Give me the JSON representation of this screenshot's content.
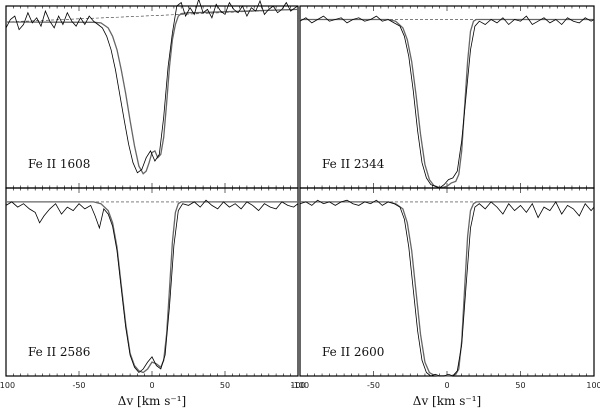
{
  "chart_data": {
    "type": "line",
    "xlabel": "Δv [km s⁻¹]",
    "xlim": [
      -100,
      100
    ],
    "ylim": [
      0,
      1.08
    ],
    "xticks": [
      -100,
      -50,
      0,
      50,
      100
    ],
    "grid": false,
    "panels": [
      {
        "label": "Fe II 1608",
        "row": 0,
        "col": 0,
        "continuum": {
          "y_start": 0.985,
          "y_end": 1.06
        },
        "model": {
          "x": [
            -100,
            -40,
            -35,
            -30,
            -27,
            -24,
            -21,
            -18,
            -15,
            -12,
            -9,
            -6,
            -4,
            -2,
            0,
            2,
            4,
            6,
            8,
            10,
            12,
            14,
            16,
            18,
            20,
            25,
            30,
            100
          ],
          "y": [
            0.985,
            0.983,
            0.98,
            0.95,
            0.9,
            0.82,
            0.7,
            0.56,
            0.4,
            0.25,
            0.13,
            0.085,
            0.1,
            0.15,
            0.21,
            0.22,
            0.18,
            0.2,
            0.3,
            0.5,
            0.72,
            0.88,
            0.97,
            1.02,
            1.035,
            1.04,
            1.04,
            1.06
          ]
        },
        "observed": {
          "x": [
            -100,
            -97,
            -94,
            -91,
            -88,
            -85,
            -82,
            -79,
            -76,
            -73,
            -70,
            -67,
            -64,
            -61,
            -58,
            -55,
            -52,
            -49,
            -46,
            -43,
            -40,
            -37,
            -34,
            -31,
            -28,
            -25,
            -22,
            -19,
            -16,
            -13,
            -10,
            -7,
            -4,
            -1,
            2,
            5,
            8,
            11,
            14,
            17,
            20,
            23,
            26,
            29,
            32,
            35,
            38,
            41,
            44,
            47,
            50,
            53,
            56,
            59,
            62,
            65,
            68,
            71,
            74,
            77,
            80,
            83,
            86,
            89,
            92,
            95,
            98,
            100
          ],
          "y": [
            0.95,
            1.0,
            1.02,
            0.94,
            0.97,
            1.04,
            0.98,
            1.01,
            0.96,
            1.05,
            0.99,
            0.95,
            1.02,
            0.97,
            1.04,
            0.99,
            0.96,
            1.01,
            0.97,
            1.02,
            0.99,
            0.97,
            0.95,
            0.9,
            0.82,
            0.7,
            0.55,
            0.4,
            0.26,
            0.15,
            0.09,
            0.11,
            0.18,
            0.22,
            0.16,
            0.2,
            0.42,
            0.72,
            0.92,
            1.08,
            1.1,
            1.02,
            1.07,
            1.03,
            1.12,
            1.04,
            1.06,
            1.01,
            1.09,
            1.05,
            1.03,
            1.1,
            1.06,
            1.04,
            1.08,
            1.02,
            1.07,
            1.05,
            1.11,
            1.03,
            1.06,
            1.08,
            1.04,
            1.06,
            1.1,
            1.05,
            1.07,
            1.08
          ]
        }
      },
      {
        "label": "Fe II 2344",
        "row": 0,
        "col": 1,
        "continuum": {
          "y_start": 1.0,
          "y_end": 1.0
        },
        "model": {
          "x": [
            -100,
            -40,
            -35,
            -30,
            -27,
            -24,
            -21,
            -18,
            -15,
            -12,
            -9,
            -6,
            -3,
            0,
            3,
            6,
            8,
            10,
            12,
            14,
            16,
            18,
            20,
            25,
            100
          ],
          "y": [
            1.0,
            1.0,
            0.99,
            0.95,
            0.88,
            0.75,
            0.55,
            0.32,
            0.14,
            0.05,
            0.015,
            0.005,
            0.003,
            0.01,
            0.03,
            0.04,
            0.08,
            0.22,
            0.48,
            0.75,
            0.93,
            0.99,
            1.0,
            1.0,
            1.0
          ]
        },
        "observed": {
          "x": [
            -100,
            -96,
            -92,
            -88,
            -84,
            -80,
            -76,
            -72,
            -68,
            -64,
            -60,
            -56,
            -52,
            -48,
            -44,
            -40,
            -36,
            -32,
            -29,
            -26,
            -23,
            -20,
            -17,
            -14,
            -11,
            -8,
            -5,
            -2,
            1,
            4,
            7,
            10,
            13,
            16,
            19,
            22,
            26,
            30,
            34,
            38,
            42,
            46,
            50,
            54,
            58,
            62,
            66,
            70,
            74,
            78,
            82,
            86,
            90,
            94,
            98,
            100
          ],
          "y": [
            0.99,
            1.01,
            0.98,
            1.0,
            1.02,
            0.99,
            1.0,
            1.01,
            0.98,
            1.0,
            1.01,
            0.99,
            1.0,
            1.02,
            0.99,
            1.0,
            0.98,
            0.96,
            0.9,
            0.78,
            0.58,
            0.34,
            0.15,
            0.06,
            0.02,
            0.01,
            0.0,
            0.02,
            0.05,
            0.06,
            0.1,
            0.28,
            0.55,
            0.82,
            0.96,
            0.99,
            0.97,
            1.0,
            0.98,
            1.01,
            0.97,
            1.0,
            0.99,
            1.02,
            0.97,
            0.99,
            1.01,
            0.98,
            1.0,
            0.97,
            1.01,
            0.99,
            0.98,
            1.01,
            0.99,
            1.0
          ]
        }
      },
      {
        "label": "Fe II 2586",
        "row": 1,
        "col": 0,
        "continuum": {
          "y_start": 1.0,
          "y_end": 1.0
        },
        "model": {
          "x": [
            -100,
            -40,
            -35,
            -30,
            -27,
            -24,
            -21,
            -18,
            -15,
            -12,
            -9,
            -6,
            -3,
            0,
            3,
            6,
            8,
            10,
            12,
            14,
            16,
            18,
            20,
            25,
            100
          ],
          "y": [
            1.0,
            1.0,
            0.99,
            0.95,
            0.88,
            0.74,
            0.52,
            0.3,
            0.13,
            0.06,
            0.03,
            0.02,
            0.04,
            0.08,
            0.07,
            0.05,
            0.09,
            0.24,
            0.5,
            0.77,
            0.94,
            0.99,
            1.0,
            1.0,
            1.0
          ]
        },
        "observed": {
          "x": [
            -100,
            -96,
            -92,
            -88,
            -84,
            -80,
            -77,
            -74,
            -70,
            -66,
            -62,
            -58,
            -54,
            -50,
            -46,
            -42,
            -39,
            -36,
            -33,
            -30,
            -27,
            -24,
            -21,
            -18,
            -15,
            -12,
            -9,
            -6,
            -3,
            0,
            3,
            6,
            9,
            12,
            15,
            18,
            21,
            25,
            29,
            33,
            37,
            41,
            45,
            49,
            53,
            57,
            61,
            65,
            69,
            73,
            77,
            81,
            85,
            89,
            93,
            97,
            100
          ],
          "y": [
            0.98,
            1.0,
            0.97,
            0.99,
            0.96,
            0.94,
            0.88,
            0.92,
            0.96,
            0.99,
            0.93,
            0.97,
            0.95,
            0.99,
            0.96,
            0.98,
            0.92,
            0.85,
            0.96,
            0.93,
            0.86,
            0.72,
            0.5,
            0.28,
            0.12,
            0.05,
            0.02,
            0.04,
            0.08,
            0.11,
            0.06,
            0.04,
            0.12,
            0.4,
            0.75,
            0.95,
            0.99,
            0.98,
            1.0,
            0.97,
            1.01,
            0.98,
            0.96,
            1.0,
            0.97,
            0.99,
            0.96,
            1.0,
            0.98,
            0.95,
            0.99,
            0.97,
            0.96,
            1.0,
            0.98,
            0.97,
            0.99
          ]
        }
      },
      {
        "label": "Fe II 2600",
        "row": 1,
        "col": 1,
        "continuum": {
          "y_start": 1.0,
          "y_end": 1.0
        },
        "model": {
          "x": [
            -100,
            -40,
            -35,
            -30,
            -27,
            -24,
            -21,
            -18,
            -15,
            -12,
            -9,
            -6,
            -3,
            0,
            3,
            6,
            8,
            10,
            12,
            14,
            16,
            18,
            20,
            25,
            100
          ],
          "y": [
            1.0,
            1.0,
            0.99,
            0.96,
            0.88,
            0.72,
            0.48,
            0.24,
            0.08,
            0.02,
            0.005,
            0.002,
            0.001,
            0.001,
            0.002,
            0.01,
            0.04,
            0.2,
            0.5,
            0.8,
            0.95,
            0.99,
            1.0,
            1.0,
            1.0
          ]
        },
        "observed": {
          "x": [
            -100,
            -96,
            -92,
            -88,
            -84,
            -80,
            -76,
            -72,
            -68,
            -64,
            -60,
            -56,
            -52,
            -48,
            -44,
            -40,
            -36,
            -32,
            -29,
            -26,
            -23,
            -20,
            -17,
            -14,
            -11,
            -8,
            -5,
            -2,
            1,
            4,
            7,
            10,
            13,
            16,
            19,
            22,
            26,
            30,
            34,
            38,
            42,
            46,
            50,
            54,
            58,
            62,
            66,
            70,
            74,
            78,
            82,
            86,
            90,
            94,
            98,
            100
          ],
          "y": [
            0.99,
            1.0,
            0.98,
            1.01,
            0.99,
            1.0,
            0.98,
            1.0,
            1.01,
            0.99,
            0.98,
            1.0,
            0.99,
            1.01,
            0.98,
            1.0,
            0.99,
            0.97,
            0.9,
            0.74,
            0.5,
            0.26,
            0.09,
            0.02,
            0.0,
            0.01,
            0.0,
            0.0,
            0.01,
            0.0,
            0.03,
            0.18,
            0.52,
            0.85,
            0.97,
            0.99,
            0.96,
            1.0,
            0.97,
            0.93,
            0.99,
            0.95,
            0.98,
            0.94,
            0.99,
            0.91,
            0.97,
            0.95,
            1.0,
            0.93,
            0.98,
            0.96,
            0.92,
            0.99,
            0.95,
            0.97
          ]
        }
      }
    ]
  }
}
